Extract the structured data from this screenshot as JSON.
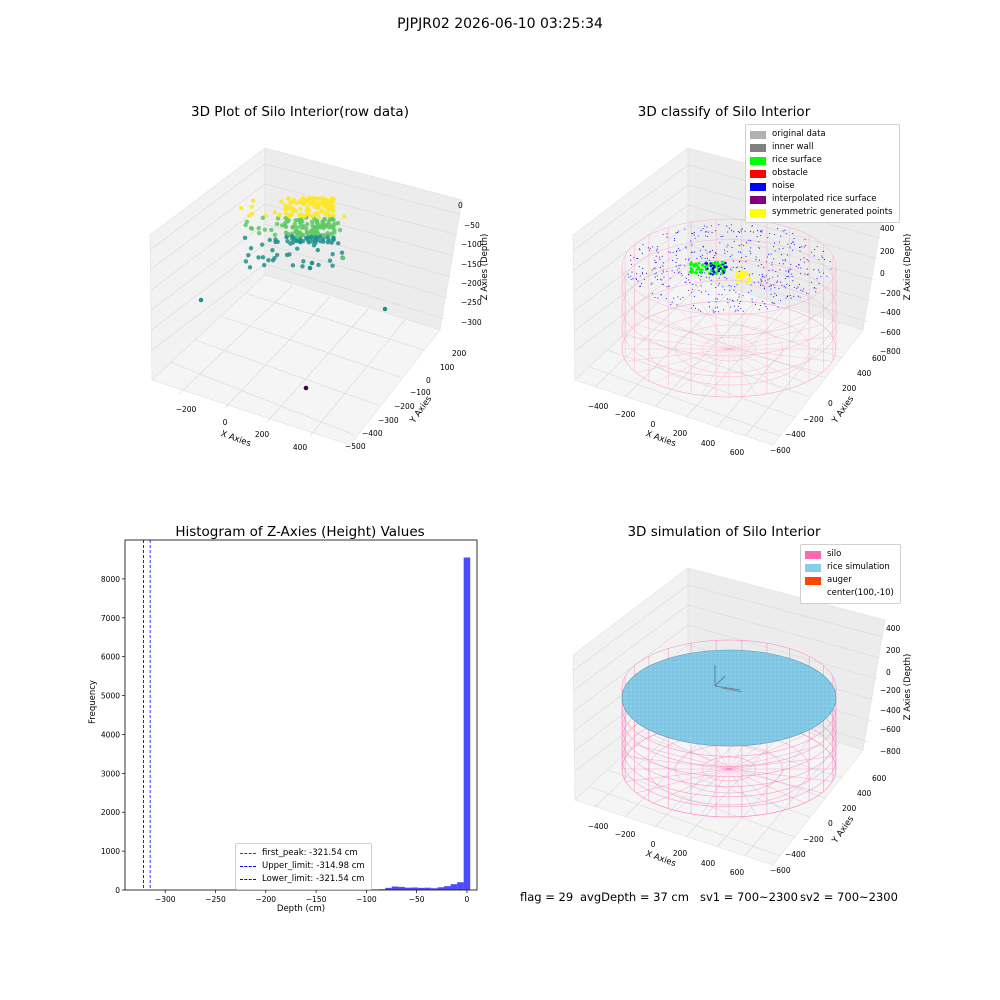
{
  "figure_title": "PJPJR02 2026-06-10 03:25:34",
  "footer": {
    "flag": "flag = 29",
    "avg_depth": "avgDepth = 37 cm",
    "sv1": "sv1 = 700~2300",
    "sv2": "sv2 = 700~2300"
  },
  "chart_data": [
    {
      "type": "scatter",
      "title": "3D Plot of Silo Interior(row data)",
      "xlabel": "X Axies",
      "ylabel": "Y Axies",
      "zlabel": "Z Axies (Depth)",
      "x_ticks": [
        "−200",
        "0",
        "200",
        "400"
      ],
      "y_ticks": [
        "200",
        "100",
        "0",
        "−100",
        "−200",
        "−300",
        "−400",
        "−500"
      ],
      "z_ticks": [
        "0",
        "−50",
        "−100",
        "−150",
        "−200",
        "−250",
        "−300"
      ],
      "colormap": [
        "#440154",
        "#21918c",
        "#5ec962",
        "#fde725"
      ],
      "points_note": "Dense cluster near z ≈ 0 to −60 around x ≈ 0..100, y ≈ 0; outliers near z ≈ −300."
    },
    {
      "type": "scatter",
      "title": "3D classify of Silo Interior",
      "xlabel": "X Axies",
      "ylabel": "Y Axies",
      "zlabel": "Z Axies (Depth)",
      "x_ticks": [
        "−400",
        "−200",
        "0",
        "200",
        "400",
        "600"
      ],
      "y_ticks": [
        "600",
        "400",
        "200",
        "0",
        "−200",
        "−400",
        "−600"
      ],
      "z_ticks": [
        "400",
        "200",
        "0",
        "−200",
        "−400",
        "−600",
        "−800"
      ],
      "legend": [
        {
          "label": "original data",
          "color": "#b0b0b0"
        },
        {
          "label": "inner wall",
          "color": "#808080"
        },
        {
          "label": "rice surface",
          "color": "#00ff00"
        },
        {
          "label": "obstacle",
          "color": "#ff0000"
        },
        {
          "label": "noise",
          "color": "#0000ff"
        },
        {
          "label": "interpolated rice surface",
          "color": "#800080"
        },
        {
          "label": "symmetric generated points",
          "color": "#ffff00"
        }
      ]
    },
    {
      "type": "bar",
      "title": "Histogram of Z-Axies (Height) Values",
      "xlabel": "Depth (cm)",
      "ylabel": "Frequency",
      "xlim": [
        -340,
        10
      ],
      "ylim": [
        0,
        9000
      ],
      "x_ticks": [
        -300,
        -250,
        -200,
        -150,
        -100,
        -50,
        0
      ],
      "x_tick_labels": [
        "−300",
        "−250",
        "−200",
        "−150",
        "−100",
        "−50",
        "0"
      ],
      "y_ticks": [
        0,
        1000,
        2000,
        3000,
        4000,
        5000,
        6000,
        7000,
        8000
      ],
      "bar_color": "#0000ff",
      "bin_width": 6.5,
      "bins": [
        {
          "x": -104,
          "value": 5
        },
        {
          "x": -97.5,
          "value": 10
        },
        {
          "x": -91,
          "value": 15
        },
        {
          "x": -84.5,
          "value": 20
        },
        {
          "x": -78,
          "value": 55
        },
        {
          "x": -71.5,
          "value": 90
        },
        {
          "x": -65,
          "value": 80
        },
        {
          "x": -58.5,
          "value": 60
        },
        {
          "x": -52,
          "value": 65
        },
        {
          "x": -45.5,
          "value": 55
        },
        {
          "x": -39,
          "value": 60
        },
        {
          "x": -32.5,
          "value": 45
        },
        {
          "x": -26,
          "value": 70
        },
        {
          "x": -19.5,
          "value": 100
        },
        {
          "x": -13,
          "value": 150
        },
        {
          "x": -6.5,
          "value": 200
        },
        {
          "x": 0,
          "value": 8550
        }
      ],
      "vlines": [
        {
          "label": "first_peak: -321.54 cm",
          "x": -321.54,
          "color": "#ff0000"
        },
        {
          "label": "Upper_limit: -314.98 cm",
          "x": -314.98,
          "color": "#0000ff"
        },
        {
          "label": "Lower_limit: -321.54 cm",
          "x": -321.54,
          "color": "#0000ff"
        }
      ]
    },
    {
      "type": "other",
      "title": "3D simulation of Silo Interior",
      "xlabel": "X Axies",
      "ylabel": "Y Axies",
      "zlabel": "Z Axies (Depth)",
      "x_ticks": [
        "−400",
        "−200",
        "0",
        "200",
        "400",
        "600"
      ],
      "y_ticks": [
        "600",
        "400",
        "200",
        "0",
        "−200",
        "−400",
        "−600"
      ],
      "z_ticks": [
        "400",
        "200",
        "0",
        "−200",
        "−400",
        "−600",
        "−800"
      ],
      "legend": [
        {
          "label": "silo",
          "color": "#ff69b4"
        },
        {
          "label": "rice simulation",
          "color": "#87ceeb"
        },
        {
          "label": "auger",
          "color": "#ff4500"
        },
        {
          "label": "center(100,-10)",
          "color": ""
        }
      ]
    }
  ]
}
